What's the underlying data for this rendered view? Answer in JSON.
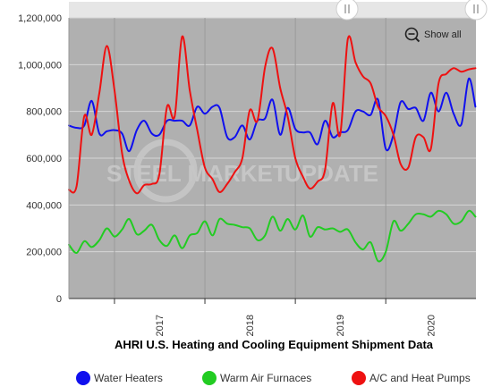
{
  "ui": {
    "show_all_label": "Show all",
    "watermark_bold": "STEEL MARKET",
    "watermark_light": "UPDATE"
  },
  "colors": {
    "plot_background": "#b0b0b0",
    "navigator_background": "#e6e6e6",
    "water_heaters": "#1010ee",
    "warm_air_furnaces": "#22cc22",
    "ac_heat_pumps": "#ee1111"
  },
  "chart_data": {
    "type": "line",
    "title": "AHRI U.S. Heating and Cooling Equipment Shipment Data",
    "xlabel": "",
    "ylabel": "",
    "x_start": "2016-07",
    "x_end": "2020-12",
    "x_ticks": [
      "2017",
      "2018",
      "2019",
      "2020"
    ],
    "ylim": [
      0,
      1200000
    ],
    "y_ticks": [
      0,
      200000,
      400000,
      600000,
      800000,
      1000000,
      1200000
    ],
    "y_tick_labels": [
      "0",
      "200,000",
      "400,000",
      "600,000",
      "800,000",
      "1,000,000",
      "1,200,000"
    ],
    "grid": true,
    "legend_position": "bottom",
    "series": [
      {
        "name": "Water Heaters",
        "color": "#1010ee",
        "points": [
          [
            "2016-07-01",
            740000
          ],
          [
            "2016-08-01",
            730000
          ],
          [
            "2016-09-01",
            740000
          ],
          [
            "2016-10-01",
            845000
          ],
          [
            "2016-11-01",
            705000
          ],
          [
            "2016-12-01",
            715000
          ],
          [
            "2017-01-01",
            720000
          ],
          [
            "2017-02-01",
            705000
          ],
          [
            "2017-03-01",
            630000
          ],
          [
            "2017-04-01",
            720000
          ],
          [
            "2017-05-01",
            760000
          ],
          [
            "2017-06-01",
            705000
          ],
          [
            "2017-07-01",
            700000
          ],
          [
            "2017-08-01",
            760000
          ],
          [
            "2017-09-01",
            760000
          ],
          [
            "2017-10-01",
            760000
          ],
          [
            "2017-11-01",
            740000
          ],
          [
            "2017-12-01",
            820000
          ],
          [
            "2018-01-01",
            790000
          ],
          [
            "2018-02-01",
            820000
          ],
          [
            "2018-03-01",
            815000
          ],
          [
            "2018-04-01",
            690000
          ],
          [
            "2018-05-01",
            690000
          ],
          [
            "2018-06-01",
            740000
          ],
          [
            "2018-07-01",
            680000
          ],
          [
            "2018-08-01",
            760000
          ],
          [
            "2018-09-01",
            770000
          ],
          [
            "2018-10-01",
            850000
          ],
          [
            "2018-11-01",
            700000
          ],
          [
            "2018-12-01",
            815000
          ],
          [
            "2019-01-01",
            725000
          ],
          [
            "2019-02-01",
            710000
          ],
          [
            "2019-03-01",
            710000
          ],
          [
            "2019-04-01",
            660000
          ],
          [
            "2019-05-01",
            760000
          ],
          [
            "2019-06-01",
            690000
          ],
          [
            "2019-07-01",
            710000
          ],
          [
            "2019-08-01",
            720000
          ],
          [
            "2019-09-01",
            800000
          ],
          [
            "2019-10-01",
            800000
          ],
          [
            "2019-11-01",
            785000
          ],
          [
            "2019-12-01",
            850000
          ],
          [
            "2020-01-01",
            640000
          ],
          [
            "2020-02-01",
            700000
          ],
          [
            "2020-03-01",
            840000
          ],
          [
            "2020-04-01",
            810000
          ],
          [
            "2020-05-01",
            815000
          ],
          [
            "2020-06-01",
            760000
          ],
          [
            "2020-07-01",
            880000
          ],
          [
            "2020-08-01",
            800000
          ],
          [
            "2020-09-01",
            880000
          ],
          [
            "2020-10-01",
            790000
          ],
          [
            "2020-11-01",
            745000
          ],
          [
            "2020-12-01",
            940000
          ],
          [
            "2020-12-28",
            820000
          ]
        ]
      },
      {
        "name": "Warm Air Furnaces",
        "color": "#22cc22",
        "points": [
          [
            "2016-07-01",
            230000
          ],
          [
            "2016-08-01",
            195000
          ],
          [
            "2016-09-01",
            245000
          ],
          [
            "2016-10-01",
            220000
          ],
          [
            "2016-11-01",
            250000
          ],
          [
            "2016-12-01",
            300000
          ],
          [
            "2017-01-01",
            265000
          ],
          [
            "2017-02-01",
            295000
          ],
          [
            "2017-03-01",
            340000
          ],
          [
            "2017-04-01",
            275000
          ],
          [
            "2017-05-01",
            290000
          ],
          [
            "2017-06-01",
            315000
          ],
          [
            "2017-07-01",
            250000
          ],
          [
            "2017-08-01",
            225000
          ],
          [
            "2017-09-01",
            270000
          ],
          [
            "2017-10-01",
            215000
          ],
          [
            "2017-11-01",
            270000
          ],
          [
            "2017-12-01",
            280000
          ],
          [
            "2018-01-01",
            330000
          ],
          [
            "2018-02-01",
            270000
          ],
          [
            "2018-03-01",
            340000
          ],
          [
            "2018-04-01",
            320000
          ],
          [
            "2018-05-01",
            315000
          ],
          [
            "2018-06-01",
            305000
          ],
          [
            "2018-07-01",
            300000
          ],
          [
            "2018-08-01",
            250000
          ],
          [
            "2018-09-01",
            270000
          ],
          [
            "2018-10-01",
            350000
          ],
          [
            "2018-11-01",
            290000
          ],
          [
            "2018-12-01",
            340000
          ],
          [
            "2019-01-01",
            295000
          ],
          [
            "2019-02-01",
            355000
          ],
          [
            "2019-03-01",
            265000
          ],
          [
            "2019-04-01",
            305000
          ],
          [
            "2019-05-01",
            295000
          ],
          [
            "2019-06-01",
            300000
          ],
          [
            "2019-07-01",
            285000
          ],
          [
            "2019-08-01",
            295000
          ],
          [
            "2019-09-01",
            240000
          ],
          [
            "2019-10-01",
            210000
          ],
          [
            "2019-11-01",
            240000
          ],
          [
            "2019-12-01",
            160000
          ],
          [
            "2020-01-01",
            200000
          ],
          [
            "2020-02-01",
            330000
          ],
          [
            "2020-03-01",
            290000
          ],
          [
            "2020-04-01",
            320000
          ],
          [
            "2020-05-01",
            360000
          ],
          [
            "2020-06-01",
            360000
          ],
          [
            "2020-07-01",
            350000
          ],
          [
            "2020-08-01",
            375000
          ],
          [
            "2020-09-01",
            360000
          ],
          [
            "2020-10-01",
            320000
          ],
          [
            "2020-11-01",
            330000
          ],
          [
            "2020-12-01",
            375000
          ],
          [
            "2020-12-28",
            350000
          ]
        ]
      },
      {
        "name": "A/C and Heat Pumps",
        "color": "#ee1111",
        "points": [
          [
            "2016-07-01",
            465000
          ],
          [
            "2016-08-01",
            480000
          ],
          [
            "2016-09-01",
            780000
          ],
          [
            "2016-10-01",
            700000
          ],
          [
            "2016-11-01",
            880000
          ],
          [
            "2016-12-01",
            1080000
          ],
          [
            "2017-01-01",
            890000
          ],
          [
            "2017-02-01",
            620000
          ],
          [
            "2017-03-01",
            505000
          ],
          [
            "2017-04-01",
            450000
          ],
          [
            "2017-05-01",
            485000
          ],
          [
            "2017-06-01",
            490000
          ],
          [
            "2017-07-01",
            530000
          ],
          [
            "2017-08-01",
            820000
          ],
          [
            "2017-09-01",
            780000
          ],
          [
            "2017-10-01",
            1120000
          ],
          [
            "2017-11-01",
            890000
          ],
          [
            "2017-12-01",
            720000
          ],
          [
            "2018-01-01",
            560000
          ],
          [
            "2018-02-01",
            510000
          ],
          [
            "2018-03-01",
            455000
          ],
          [
            "2018-04-01",
            490000
          ],
          [
            "2018-05-01",
            540000
          ],
          [
            "2018-06-01",
            600000
          ],
          [
            "2018-07-01",
            805000
          ],
          [
            "2018-08-01",
            760000
          ],
          [
            "2018-09-01",
            990000
          ],
          [
            "2018-10-01",
            1070000
          ],
          [
            "2018-11-01",
            900000
          ],
          [
            "2018-12-01",
            780000
          ],
          [
            "2019-01-01",
            600000
          ],
          [
            "2019-02-01",
            520000
          ],
          [
            "2019-03-01",
            470000
          ],
          [
            "2019-04-01",
            500000
          ],
          [
            "2019-05-01",
            550000
          ],
          [
            "2019-06-01",
            835000
          ],
          [
            "2019-07-01",
            700000
          ],
          [
            "2019-08-01",
            1110000
          ],
          [
            "2019-09-01",
            1010000
          ],
          [
            "2019-10-01",
            950000
          ],
          [
            "2019-11-01",
            920000
          ],
          [
            "2019-12-01",
            820000
          ],
          [
            "2020-01-01",
            780000
          ],
          [
            "2020-02-01",
            700000
          ],
          [
            "2020-03-01",
            575000
          ],
          [
            "2020-04-01",
            560000
          ],
          [
            "2020-05-01",
            690000
          ],
          [
            "2020-06-01",
            690000
          ],
          [
            "2020-07-01",
            640000
          ],
          [
            "2020-08-01",
            920000
          ],
          [
            "2020-09-01",
            960000
          ],
          [
            "2020-10-01",
            985000
          ],
          [
            "2020-11-01",
            970000
          ],
          [
            "2020-12-01",
            980000
          ],
          [
            "2020-12-28",
            985000
          ]
        ]
      }
    ]
  }
}
